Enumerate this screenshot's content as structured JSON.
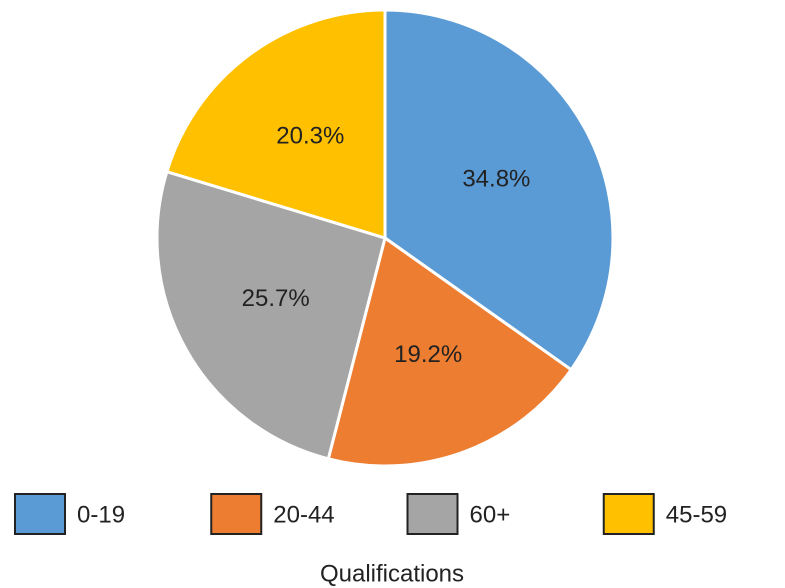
{
  "chart_data": {
    "type": "pie",
    "title": "Qualifications",
    "categories": [
      "0-19",
      "20-44",
      "60+",
      "45-59"
    ],
    "values": [
      34.8,
      19.2,
      25.7,
      20.3
    ],
    "value_labels": [
      "34.8%",
      "19.2%",
      "25.7%",
      "20.3%"
    ],
    "colors": [
      "#5b9bd5",
      "#ed7d31",
      "#a5a5a5",
      "#ffc000"
    ],
    "legend": "bottom"
  }
}
